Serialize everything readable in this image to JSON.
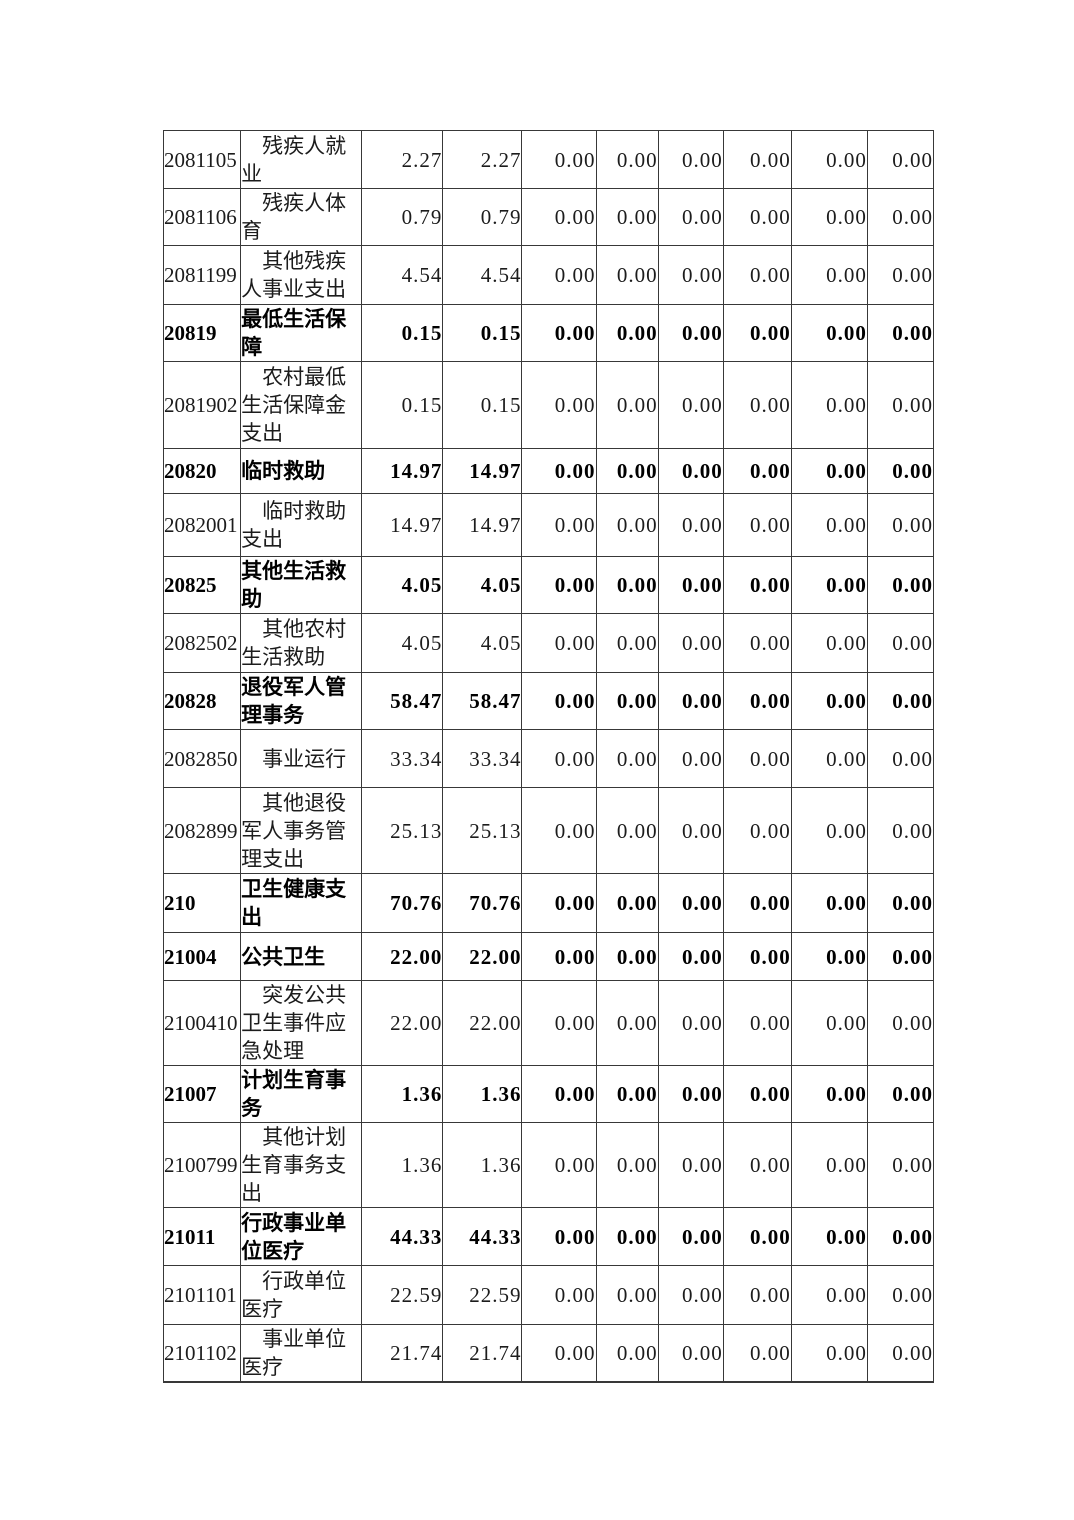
{
  "table": {
    "rows": [
      {
        "code": "2081105",
        "name": "残疾人就业",
        "bold": false,
        "values": [
          "2.27",
          "2.27",
          "0.00",
          "0.00",
          "0.00",
          "0.00",
          "0.00",
          "0.00"
        ]
      },
      {
        "code": "2081106",
        "name": "残疾人体育",
        "bold": false,
        "values": [
          "0.79",
          "0.79",
          "0.00",
          "0.00",
          "0.00",
          "0.00",
          "0.00",
          "0.00"
        ]
      },
      {
        "code": "2081199",
        "name": "其他残疾人事业支出",
        "bold": false,
        "values": [
          "4.54",
          "4.54",
          "0.00",
          "0.00",
          "0.00",
          "0.00",
          "0.00",
          "0.00"
        ]
      },
      {
        "code": "20819",
        "name": "最低生活保障",
        "bold": true,
        "values": [
          "0.15",
          "0.15",
          "0.00",
          "0.00",
          "0.00",
          "0.00",
          "0.00",
          "0.00"
        ]
      },
      {
        "code": "2081902",
        "name": "农村最低生活保障金支出",
        "bold": false,
        "values": [
          "0.15",
          "0.15",
          "0.00",
          "0.00",
          "0.00",
          "0.00",
          "0.00",
          "0.00"
        ]
      },
      {
        "code": "20820",
        "name": "临时救助",
        "bold": true,
        "values": [
          "14.97",
          "14.97",
          "0.00",
          "0.00",
          "0.00",
          "0.00",
          "0.00",
          "0.00"
        ]
      },
      {
        "code": "2082001",
        "name": "临时救助支出",
        "bold": false,
        "values": [
          "14.97",
          "14.97",
          "0.00",
          "0.00",
          "0.00",
          "0.00",
          "0.00",
          "0.00"
        ]
      },
      {
        "code": "20825",
        "name": "其他生活救助",
        "bold": true,
        "values": [
          "4.05",
          "4.05",
          "0.00",
          "0.00",
          "0.00",
          "0.00",
          "0.00",
          "0.00"
        ]
      },
      {
        "code": "2082502",
        "name": "其他农村生活救助",
        "bold": false,
        "values": [
          "4.05",
          "4.05",
          "0.00",
          "0.00",
          "0.00",
          "0.00",
          "0.00",
          "0.00"
        ]
      },
      {
        "code": "20828",
        "name": "退役军人管理事务",
        "bold": true,
        "values": [
          "58.47",
          "58.47",
          "0.00",
          "0.00",
          "0.00",
          "0.00",
          "0.00",
          "0.00"
        ]
      },
      {
        "code": "2082850",
        "name": "事业运行",
        "bold": false,
        "values": [
          "33.34",
          "33.34",
          "0.00",
          "0.00",
          "0.00",
          "0.00",
          "0.00",
          "0.00"
        ]
      },
      {
        "code": "2082899",
        "name": "其他退役军人事务管理支出",
        "bold": false,
        "values": [
          "25.13",
          "25.13",
          "0.00",
          "0.00",
          "0.00",
          "0.00",
          "0.00",
          "0.00"
        ]
      },
      {
        "code": "210",
        "name": "卫生健康支出",
        "bold": true,
        "values": [
          "70.76",
          "70.76",
          "0.00",
          "0.00",
          "0.00",
          "0.00",
          "0.00",
          "0.00"
        ]
      },
      {
        "code": "21004",
        "name": "公共卫生",
        "bold": true,
        "values": [
          "22.00",
          "22.00",
          "0.00",
          "0.00",
          "0.00",
          "0.00",
          "0.00",
          "0.00"
        ]
      },
      {
        "code": "2100410",
        "name": "突发公共卫生事件应急处理",
        "bold": false,
        "values": [
          "22.00",
          "22.00",
          "0.00",
          "0.00",
          "0.00",
          "0.00",
          "0.00",
          "0.00"
        ]
      },
      {
        "code": "21007",
        "name": "计划生育事务",
        "bold": true,
        "values": [
          "1.36",
          "1.36",
          "0.00",
          "0.00",
          "0.00",
          "0.00",
          "0.00",
          "0.00"
        ]
      },
      {
        "code": "2100799",
        "name": "其他计划生育事务支出",
        "bold": false,
        "values": [
          "1.36",
          "1.36",
          "0.00",
          "0.00",
          "0.00",
          "0.00",
          "0.00",
          "0.00"
        ]
      },
      {
        "code": "21011",
        "name": "行政事业单位医疗",
        "bold": true,
        "values": [
          "44.33",
          "44.33",
          "0.00",
          "0.00",
          "0.00",
          "0.00",
          "0.00",
          "0.00"
        ]
      },
      {
        "code": "2101101",
        "name": "行政单位医疗",
        "bold": false,
        "values": [
          "22.59",
          "22.59",
          "0.00",
          "0.00",
          "0.00",
          "0.00",
          "0.00",
          "0.00"
        ]
      },
      {
        "code": "2101102",
        "name": "事业单位医疗",
        "bold": false,
        "values": [
          "21.74",
          "21.74",
          "0.00",
          "0.00",
          "0.00",
          "0.00",
          "0.00",
          "0.00"
        ]
      }
    ]
  }
}
